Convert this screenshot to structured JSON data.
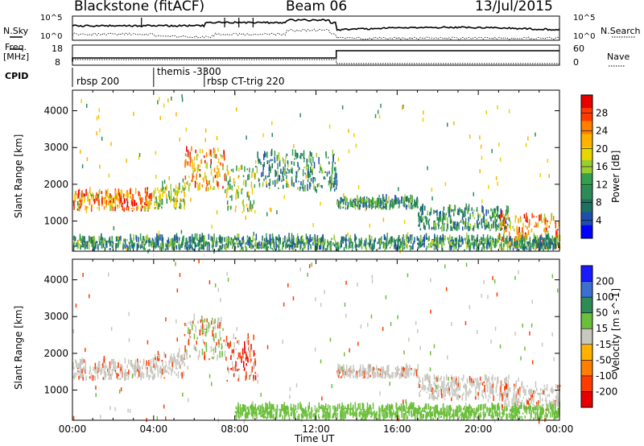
{
  "header": {
    "title": "Blackstone (fitACF)",
    "beam": "Beam 06",
    "date": "13/Jul/2015"
  },
  "top_panels": {
    "nsky_label": "N.Sky",
    "nsky_ticks": [
      "10^5",
      "10^0"
    ],
    "nsearch_label": "N.Search",
    "nsearch_ticks": [
      "10^5",
      "10^0"
    ],
    "freq_label": "Freq.",
    "freq_unit": "[MHz]",
    "freq_ticks": [
      "18",
      "8"
    ],
    "nave_label": "Nave",
    "nave_ticks": [
      "60",
      "0"
    ],
    "cpid_label": "CPID",
    "cpid_segments": [
      {
        "label": "rbsp 200",
        "start_hour": 0
      },
      {
        "label": "themis -3300",
        "start_hour": 4
      },
      {
        "label": "rbsp CT-trig 220",
        "start_hour": 6.5
      }
    ]
  },
  "chart_data": [
    {
      "type": "heatmap",
      "title": "Power",
      "ylabel": "Slant Range [km]",
      "colorbar_label": "Power [dB]",
      "colorbar_ticks": [
        "28",
        "24",
        "20",
        "16",
        "12",
        "8",
        "4"
      ],
      "colorbar_colors": [
        "#e60000",
        "#ff3c00",
        "#ff7f00",
        "#ffb300",
        "#e8d600",
        "#9acd32",
        "#32a050",
        "#2e8b57",
        "#1d6f5f",
        "#1e4fb0",
        "#0000ff"
      ],
      "ylim": [
        180,
        4560
      ],
      "yticks": [
        1000,
        2000,
        3000,
        4000
      ],
      "xlim_hours": [
        0,
        24
      ],
      "xticks": [
        "00:00",
        "04:00",
        "08:00",
        "12:00",
        "16:00",
        "20:00",
        "00:00"
      ],
      "bands": [
        {
          "t": [
            0,
            4
          ],
          "r": [
            1250,
            1750
          ],
          "level": "high"
        },
        {
          "t": [
            4,
            5.5
          ],
          "r": [
            1300,
            1900
          ],
          "level": "mid"
        },
        {
          "t": [
            5.5,
            7.5
          ],
          "r": [
            1800,
            2900
          ],
          "level": "high"
        },
        {
          "t": [
            7.5,
            9
          ],
          "r": [
            1200,
            2400
          ],
          "level": "mid"
        },
        {
          "t": [
            9,
            13
          ],
          "r": [
            1800,
            2800
          ],
          "level": "low"
        },
        {
          "t": [
            13,
            17
          ],
          "r": [
            1300,
            1550
          ],
          "level": "low"
        },
        {
          "t": [
            17,
            21.5
          ],
          "r": [
            700,
            1300
          ],
          "level": "low"
        },
        {
          "t": [
            21,
            24
          ],
          "r": [
            200,
            1100
          ],
          "level": "high"
        },
        {
          "t": [
            0,
            24
          ],
          "r": [
            180,
            500
          ],
          "level": "low"
        }
      ]
    },
    {
      "type": "heatmap",
      "title": "Velocity",
      "ylabel": "Slant Range [km]",
      "xlabel": "Time UT",
      "colorbar_label": "Velocity [m s^-1]",
      "colorbar_ticks": [
        "200",
        "100",
        "50",
        "15",
        "-15",
        "-50",
        "-100",
        "-200"
      ],
      "colorbar_colors": [
        "#1a1aff",
        "#3c6fd0",
        "#2e8b57",
        "#6bbf3a",
        "#c8c8c0",
        "#ffb300",
        "#ff7f00",
        "#ff3c00",
        "#e60000"
      ],
      "ylim": [
        180,
        4560
      ],
      "yticks": [
        1000,
        2000,
        3000,
        4000
      ],
      "xlim_hours": [
        0,
        24
      ],
      "xticks": [
        "00:00",
        "04:00",
        "08:00",
        "12:00",
        "16:00",
        "20:00",
        "00:00"
      ],
      "bands": [
        {
          "t": [
            0,
            4
          ],
          "r": [
            1250,
            1750
          ],
          "level": "ground"
        },
        {
          "t": [
            4,
            5.5
          ],
          "r": [
            1300,
            1900
          ],
          "level": "ground"
        },
        {
          "t": [
            5.5,
            7.5
          ],
          "r": [
            1800,
            2900
          ],
          "level": "mixed"
        },
        {
          "t": [
            7.5,
            9
          ],
          "r": [
            1200,
            2400
          ],
          "level": "neg"
        },
        {
          "t": [
            13,
            17
          ],
          "r": [
            1300,
            1550
          ],
          "level": "ground"
        },
        {
          "t": [
            17,
            21.5
          ],
          "r": [
            700,
            1300
          ],
          "level": "ground"
        },
        {
          "t": [
            21,
            24
          ],
          "r": [
            400,
            1100
          ],
          "level": "ground"
        },
        {
          "t": [
            8,
            13
          ],
          "r": [
            180,
            500
          ],
          "level": "pos"
        },
        {
          "t": [
            13,
            24
          ],
          "r": [
            180,
            500
          ],
          "level": "pos"
        }
      ]
    }
  ]
}
